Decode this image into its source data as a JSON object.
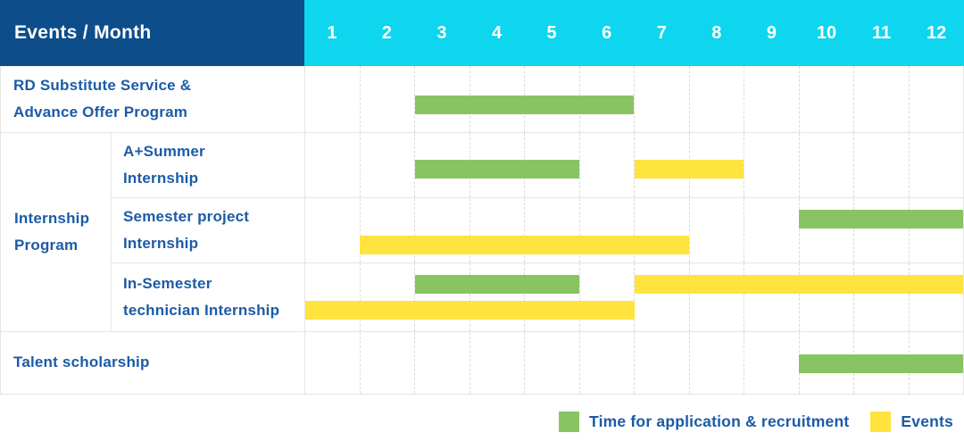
{
  "colors": {
    "header_bg": "#0D4D8A",
    "months_bg": "#0ED6EE",
    "text_blue": "#1C5BA6",
    "grid_line": "#E5E5E5",
    "dash_line": "#DBDBDB",
    "recruitment": "#88C562",
    "event": "#FFE33F"
  },
  "header": {
    "title": "Events / Month",
    "months": [
      "1",
      "2",
      "3",
      "4",
      "5",
      "6",
      "7",
      "8",
      "9",
      "10",
      "11",
      "12"
    ]
  },
  "chart_data": {
    "type": "bar",
    "subtype": "gantt",
    "x_axis_label": "Month",
    "x_range": [
      1,
      12
    ],
    "grid": "dashed-vertical",
    "legend_position": "bottom-right",
    "groups": [
      {
        "id": "internship-program",
        "label_lines": [
          "Internship",
          "Program"
        ]
      }
    ],
    "rows": [
      {
        "id": "rd-substitute-service",
        "group": null,
        "label_lines": [
          "RD Substitute Service &",
          "Advance Offer Program"
        ],
        "bars": [
          {
            "kind": "recruitment",
            "start_month": 3,
            "end_month": 6,
            "lane": "mid"
          }
        ]
      },
      {
        "id": "a-plus-summer-internship",
        "group": "internship-program",
        "label_lines": [
          "A+Summer",
          "Internship"
        ],
        "bars": [
          {
            "kind": "recruitment",
            "start_month": 3,
            "end_month": 5,
            "lane": "mid"
          },
          {
            "kind": "event",
            "start_month": 7,
            "end_month": 8,
            "lane": "mid"
          }
        ]
      },
      {
        "id": "semester-project-internship",
        "group": "internship-program",
        "label_lines": [
          "Semester project",
          "Internship"
        ],
        "bars": [
          {
            "kind": "recruitment",
            "start_month": 10,
            "end_month": 12,
            "lane": "top"
          },
          {
            "kind": "event",
            "start_month": 2,
            "end_month": 7,
            "lane": "bottom"
          }
        ]
      },
      {
        "id": "in-semester-technician-internship",
        "group": "internship-program",
        "label_lines": [
          "In-Semester",
          "technician Internship"
        ],
        "bars": [
          {
            "kind": "recruitment",
            "start_month": 3,
            "end_month": 5,
            "lane": "top"
          },
          {
            "kind": "event",
            "start_month": 7,
            "end_month": 12,
            "lane": "top"
          },
          {
            "kind": "event",
            "start_month": 1,
            "end_month": 6,
            "lane": "bottom"
          }
        ]
      },
      {
        "id": "talent-scholarship",
        "group": null,
        "label_lines": [
          "Talent scholarship"
        ],
        "bars": [
          {
            "kind": "recruitment",
            "start_month": 10,
            "end_month": 12,
            "lane": "mid"
          }
        ]
      }
    ],
    "legend": [
      {
        "color_key": "recruitment",
        "label": "Time for application & recruitment"
      },
      {
        "color_key": "event",
        "label": "Events"
      }
    ]
  }
}
